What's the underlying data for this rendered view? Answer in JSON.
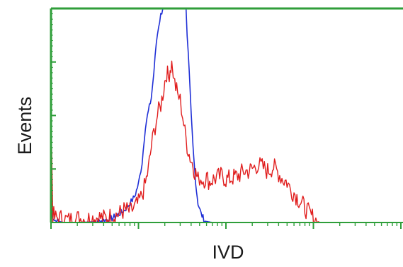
{
  "chart_data": {
    "type": "line",
    "xlabel": "IVD",
    "ylabel": "Events",
    "x_scale": "log",
    "xlim": [
      1,
      10000
    ],
    "ylim": [
      0,
      100
    ],
    "grid": false,
    "legend": "none",
    "colors": {
      "axes": "#2f9e3a",
      "ticks": "#2f9e3a",
      "blue_series": "#1f2fd6",
      "red_series": "#e01d1d"
    },
    "series": [
      {
        "color": "#1f2fd6",
        "x": [
          1,
          1.05,
          1.1,
          1.4,
          2,
          3,
          4,
          5,
          6,
          7,
          8,
          9,
          10,
          11,
          12,
          13,
          14,
          15,
          16,
          17,
          18,
          19,
          20,
          21,
          22,
          23,
          24,
          25,
          26,
          28,
          30,
          32,
          34,
          35,
          36,
          38,
          40,
          42,
          44,
          46,
          48,
          52,
          56,
          60,
          70,
          80,
          100,
          200,
          1000,
          10000
        ],
        "y": [
          8,
          3,
          1,
          0,
          0,
          0.3,
          1,
          2,
          4,
          6,
          9,
          12,
          18,
          28,
          45,
          52,
          58,
          70,
          84,
          92,
          97,
          100,
          100,
          100,
          100,
          100,
          100,
          100,
          100,
          100,
          100,
          100,
          100,
          100,
          88,
          70,
          50,
          35,
          24,
          15,
          9,
          4,
          1.5,
          0.5,
          0,
          0,
          0,
          0,
          0,
          0
        ]
      },
      {
        "color": "#e01d1d",
        "x": [
          1,
          1.05,
          1.1,
          1.3,
          1.6,
          2,
          2.5,
          3,
          3.5,
          4,
          5,
          6,
          7,
          8,
          9,
          10,
          11,
          12,
          13,
          14,
          15,
          16,
          17,
          18,
          19,
          20,
          21,
          22,
          23,
          24,
          25,
          26,
          28,
          30,
          32,
          34,
          36,
          38,
          40,
          42,
          44,
          46,
          48,
          50,
          55,
          60,
          65,
          70,
          80,
          90,
          100,
          120,
          140,
          160,
          180,
          200,
          230,
          260,
          300,
          350,
          400,
          450,
          500,
          550,
          600,
          700,
          800,
          900,
          1000,
          1100,
          1200,
          1400,
          10000
        ],
        "y": [
          50,
          4,
          2,
          2,
          1,
          2,
          1.5,
          2,
          2.5,
          2,
          3,
          4,
          6,
          5,
          7,
          9,
          13,
          18,
          25,
          35,
          42,
          48,
          52,
          55,
          60,
          66,
          70,
          68,
          72,
          74,
          70,
          65,
          60,
          57,
          50,
          42,
          36,
          32,
          29,
          27,
          24,
          22,
          20,
          21,
          20,
          21,
          19,
          20,
          21,
          22,
          20,
          21,
          22,
          24,
          24,
          25,
          27,
          26,
          24,
          26,
          23,
          20,
          19,
          15,
          14,
          10,
          7,
          4,
          2,
          0.6,
          0,
          0,
          0
        ]
      }
    ]
  }
}
